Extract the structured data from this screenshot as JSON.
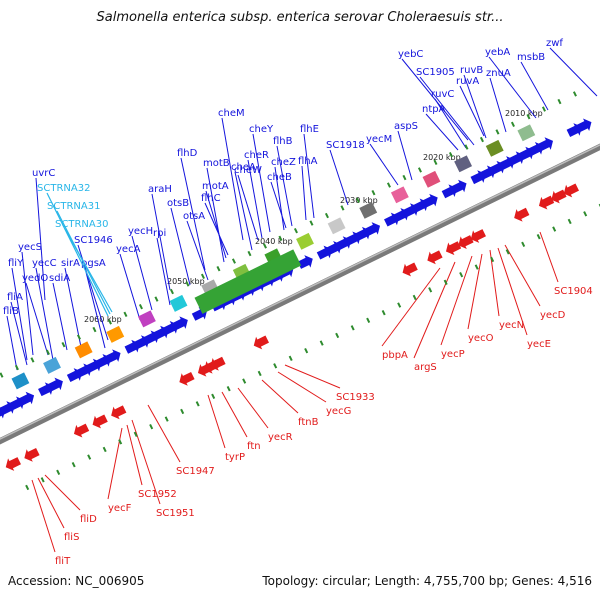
{
  "title": "Salmonella enterica subsp. enterica serovar Choleraesuis str...",
  "footer": {
    "accession": "Accession: NC_006905",
    "topology": "Topology: circular; Length: 4,755,700 bp; Genes: 4,516"
  },
  "colors": {
    "forward": "#1414dc",
    "reverse": "#e11b1b",
    "rna": "#29b6e8",
    "backbone": "#7a7a7a"
  },
  "scale_labels": [
    "2010 kbp",
    "2020 kbp",
    "2030 kbp",
    "2040 kbp",
    "2050 kbp",
    "2060 kbp"
  ],
  "forward_genes": [
    "uvrC",
    "yecS",
    "fliY",
    "yedO",
    "sdiA",
    "fliA",
    "fliB",
    "yecC",
    "sirA",
    "pgsA",
    "SC1946",
    "yecA",
    "yecH",
    "rpi",
    "araH",
    "otsB",
    "otsA",
    "flhD",
    "motB",
    "motA",
    "flhC",
    "cheA",
    "cheM",
    "cheR",
    "cheW",
    "cheY",
    "cheZ",
    "cheB",
    "flhB",
    "flhA",
    "flhE",
    "SC1918",
    "yecM",
    "aspS",
    "ntpA",
    "ruvC",
    "SC1905",
    "yebC",
    "ruvB",
    "ruvA",
    "znuA",
    "yebA",
    "msbB",
    "zwf"
  ],
  "rna_genes": [
    "SCTRNA32",
    "SCTRNA31",
    "SCTRNA30"
  ],
  "reverse_genes": [
    "SC1904",
    "yecD",
    "yecE",
    "yecN",
    "yecO",
    "yecP",
    "argS",
    "pbpA",
    "SC1933",
    "yecG",
    "ftnB",
    "yecR",
    "ftn",
    "tyrP",
    "SC1947",
    "SC1951",
    "SC1952",
    "yecF",
    "fliD",
    "fliS",
    "fliT"
  ]
}
